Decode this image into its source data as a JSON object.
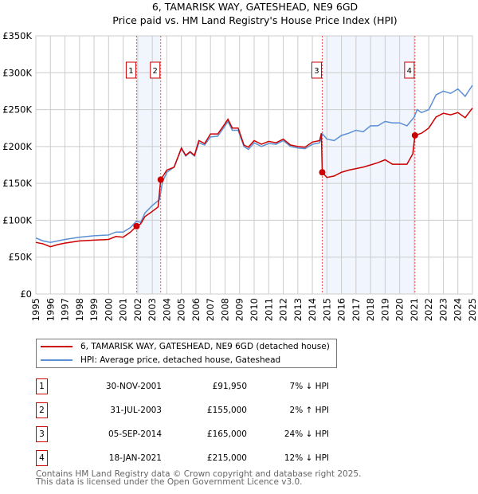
{
  "chart_data": {
    "type": "line",
    "title": "6, TAMARISK WAY, GATESHEAD, NE9 6GD",
    "subtitle": "Price paid vs. HM Land Registry's House Price Index (HPI)",
    "xlim": [
      1995,
      2025
    ],
    "ylim": [
      0,
      350000
    ],
    "yticks": [
      {
        "v": 0,
        "label": "£0"
      },
      {
        "v": 50000,
        "label": "£50K"
      },
      {
        "v": 100000,
        "label": "£100K"
      },
      {
        "v": 150000,
        "label": "£150K"
      },
      {
        "v": 200000,
        "label": "£200K"
      },
      {
        "v": 250000,
        "label": "£250K"
      },
      {
        "v": 300000,
        "label": "£300K"
      },
      {
        "v": 350000,
        "label": "£350K"
      }
    ],
    "xticks": [
      "1995",
      "1996",
      "1997",
      "1998",
      "1999",
      "2000",
      "2001",
      "2002",
      "2003",
      "2004",
      "2005",
      "2006",
      "2007",
      "2008",
      "2009",
      "2010",
      "2011",
      "2012",
      "2013",
      "2014",
      "2015",
      "2016",
      "2017",
      "2018",
      "2019",
      "2020",
      "2021",
      "2022",
      "2023",
      "2024",
      "2025"
    ],
    "grid": true,
    "series": [
      {
        "name": "6, TAMARISK WAY, GATESHEAD, NE9 6GD (detached house)",
        "color": "#cc0000",
        "x": [
          1995,
          1995.5,
          1996,
          1996.5,
          1997,
          1998,
          1999,
          2000,
          2000.5,
          2001,
          2001.5,
          2001.92,
          2002.2,
          2002.5,
          2003,
          2003.4,
          2003.58,
          2004,
          2004.5,
          2005,
          2005.3,
          2005.6,
          2005.9,
          2006.2,
          2006.6,
          2007,
          2007.5,
          2008,
          2008.2,
          2008.5,
          2008.9,
          2009.3,
          2009.6,
          2010,
          2010.5,
          2011,
          2011.5,
          2012,
          2012.5,
          2013,
          2013.5,
          2014,
          2014.5,
          2014.62,
          2014.68,
          2015,
          2015.5,
          2016,
          2016.5,
          2017,
          2017.5,
          2018,
          2018.5,
          2019,
          2019.5,
          2020,
          2020.5,
          2020.9,
          2021.05,
          2021.5,
          2022,
          2022.5,
          2023,
          2023.5,
          2024,
          2024.5,
          2025
        ],
        "y": [
          70,
          68,
          64,
          67,
          69,
          72,
          73,
          74,
          78,
          77,
          84,
          91.95,
          95,
          105,
          112,
          118,
          155,
          168,
          172,
          198,
          188,
          193,
          188,
          208,
          204,
          217,
          217,
          231,
          237,
          225,
          225,
          202,
          199,
          208,
          203,
          207,
          205,
          210,
          202,
          200,
          199,
          206,
          208,
          218,
          165,
          158,
          160,
          165,
          168,
          170,
          172,
          175,
          178,
          182,
          176,
          176,
          176,
          190,
          215,
          218,
          225,
          240,
          245,
          243,
          246,
          239,
          252
        ]
      },
      {
        "name": "HPI: Average price, detached house, Gateshead",
        "color": "#5b8fd4",
        "x": [
          1995,
          1995.5,
          1996,
          1996.5,
          1997,
          1998,
          1999,
          2000,
          2000.5,
          2001,
          2001.5,
          2001.92,
          2002.2,
          2002.5,
          2003,
          2003.5,
          2003.7,
          2004,
          2004.5,
          2005,
          2005.3,
          2005.6,
          2005.9,
          2006.2,
          2006.6,
          2007,
          2007.5,
          2008,
          2008.2,
          2008.5,
          2008.9,
          2009.3,
          2009.6,
          2010,
          2010.5,
          2011,
          2011.5,
          2012,
          2012.5,
          2013,
          2013.5,
          2014,
          2014.5,
          2014.7,
          2015,
          2015.5,
          2016,
          2016.5,
          2017,
          2017.5,
          2018,
          2018.5,
          2019,
          2019.5,
          2020,
          2020.5,
          2021,
          2021.2,
          2021.5,
          2022,
          2022.5,
          2023,
          2023.5,
          2024,
          2024.5,
          2025
        ],
        "y": [
          76,
          72,
          70,
          72,
          74,
          77,
          79,
          80,
          84,
          84,
          90,
          99,
          97,
          110,
          120,
          128,
          152,
          165,
          172,
          197,
          187,
          192,
          187,
          205,
          202,
          213,
          214,
          228,
          234,
          222,
          222,
          200,
          196,
          205,
          200,
          204,
          203,
          208,
          200,
          198,
          197,
          203,
          205,
          217,
          210,
          208,
          215,
          218,
          222,
          220,
          228,
          228,
          234,
          232,
          232,
          228,
          240,
          250,
          246,
          250,
          270,
          275,
          272,
          278,
          268,
          283
        ]
      }
    ],
    "y_unit": "thousands GBP",
    "shaded_ranges": [
      [
        2001.92,
        2003.58
      ],
      [
        2014.68,
        2021.05
      ]
    ],
    "sales": [
      {
        "n": "1",
        "x": 2001.92,
        "price": 91950,
        "date": "30-NOV-2001",
        "price_label": "£91,950",
        "hpi": "7% ↓ HPI"
      },
      {
        "n": "2",
        "x": 2003.58,
        "price": 155000,
        "date": "31-JUL-2003",
        "price_label": "£155,000",
        "hpi": "2% ↑ HPI"
      },
      {
        "n": "3",
        "x": 2014.68,
        "price": 165000,
        "date": "05-SEP-2014",
        "price_label": "£165,000",
        "hpi": "24% ↓ HPI"
      },
      {
        "n": "4",
        "x": 2021.05,
        "price": 215000,
        "date": "18-JAN-2021",
        "price_label": "£215,000",
        "hpi": "12% ↓ HPI"
      }
    ],
    "legend_placement": "below"
  },
  "footer": {
    "line1": "Contains HM Land Registry data © Crown copyright and database right 2025.",
    "line2": "This data is licensed under the Open Government Licence v3.0."
  }
}
